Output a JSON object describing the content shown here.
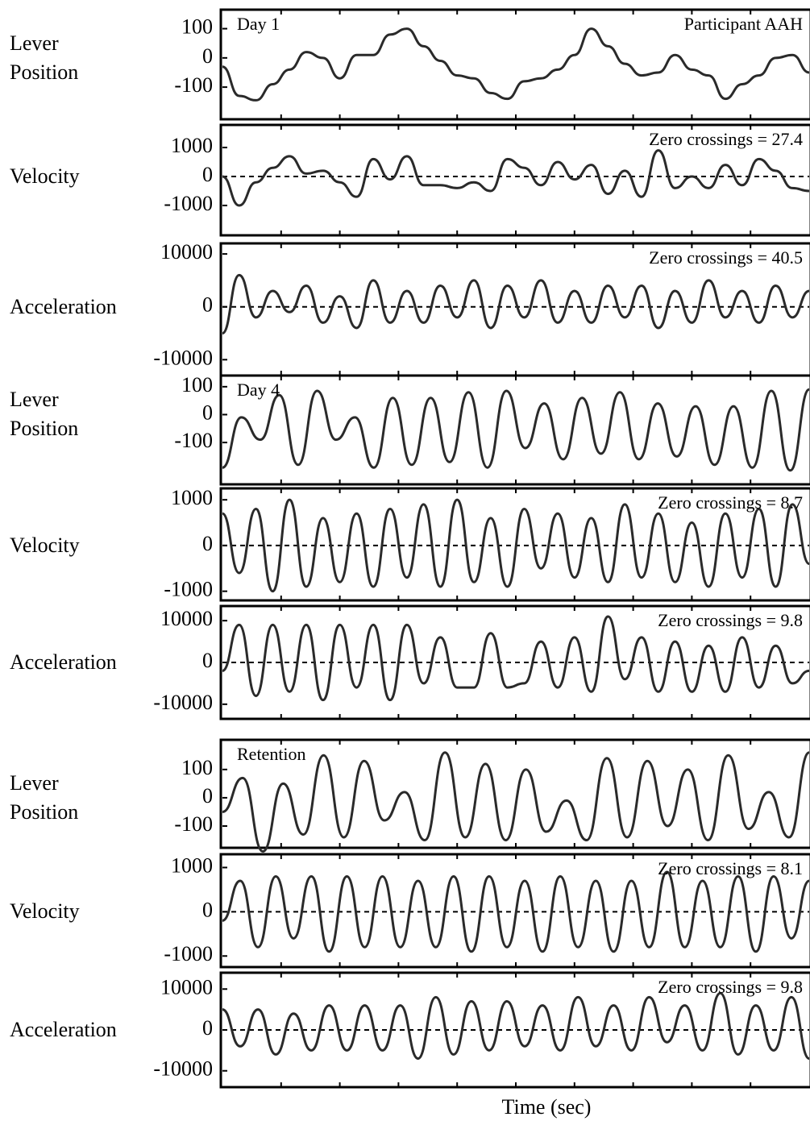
{
  "chart_data": [
    {
      "type": "line",
      "ylabel": "Lever Position",
      "ylim": [
        -210,
        165
      ],
      "yticks": [
        -100,
        0,
        100
      ],
      "zero_line": false,
      "annotations": [
        {
          "text": "Day 1",
          "position": "top-left"
        },
        {
          "text": "Participant AAH",
          "position": "top-right"
        }
      ],
      "values": [
        -30,
        -130,
        -145,
        -90,
        -40,
        20,
        0,
        -70,
        10,
        10,
        80,
        100,
        40,
        -10,
        -60,
        -70,
        -120,
        -140,
        -80,
        -70,
        -40,
        10,
        100,
        40,
        -20,
        -60,
        -50,
        10,
        -40,
        -60,
        -140,
        -90,
        -60,
        0,
        10,
        -50
      ]
    },
    {
      "type": "line",
      "ylabel": "Velocity",
      "ylim": [
        -2030,
        1780
      ],
      "yticks": [
        -1000,
        0,
        1000
      ],
      "zero_line": true,
      "annotations": [
        {
          "text": "Zero crossings = 27.4",
          "position": "top-right"
        }
      ],
      "values": [
        0,
        -1000,
        -200,
        300,
        700,
        100,
        200,
        -200,
        -700,
        600,
        -100,
        700,
        -300,
        -300,
        -400,
        -200,
        -500,
        600,
        300,
        -300,
        500,
        -100,
        400,
        -600,
        200,
        -700,
        900,
        -400,
        0,
        -400,
        400,
        -300,
        600,
        200,
        -400,
        -500
      ]
    },
    {
      "type": "line",
      "ylabel": "Acceleration",
      "ylim": [
        -13000,
        12000
      ],
      "yticks": [
        -10000,
        0,
        10000
      ],
      "zero_line": true,
      "annotations": [
        {
          "text": "Zero crossings = 40.5",
          "position": "top-right"
        }
      ],
      "values": [
        -5000,
        6000,
        -2000,
        3000,
        -1000,
        4000,
        -3000,
        2000,
        -4000,
        5000,
        -3000,
        3000,
        -3000,
        4000,
        -2000,
        5000,
        -4000,
        4000,
        -2000,
        5000,
        -3000,
        3000,
        -3000,
        4000,
        -2000,
        4000,
        -4000,
        3000,
        -3000,
        5000,
        -2000,
        3000,
        -3000,
        4000,
        -2000,
        3000
      ]
    },
    {
      "type": "line",
      "ylabel": "Lever Position",
      "ylim": [
        -250,
        140
      ],
      "yticks": [
        -100,
        0,
        100
      ],
      "zero_line": false,
      "annotations": [
        {
          "text": "Day 4",
          "position": "top-left"
        }
      ],
      "values": [
        -190,
        -10,
        -90,
        70,
        -180,
        85,
        -90,
        -10,
        -190,
        60,
        -180,
        60,
        -170,
        80,
        -190,
        85,
        -120,
        40,
        -160,
        60,
        -140,
        80,
        -160,
        40,
        -150,
        30,
        -180,
        30,
        -190,
        85,
        -200,
        90
      ]
    },
    {
      "type": "line",
      "ylabel": "Velocity",
      "ylim": [
        -1200,
        1250
      ],
      "yticks": [
        -1000,
        0,
        1000
      ],
      "zero_line": true,
      "annotations": [
        {
          "text": "Zero crossings = 8.7",
          "position": "top-right"
        }
      ],
      "values": [
        700,
        -600,
        800,
        -1000,
        1000,
        -900,
        600,
        -800,
        700,
        -900,
        800,
        -700,
        900,
        -900,
        1000,
        -800,
        600,
        -900,
        800,
        -500,
        700,
        -700,
        600,
        -800,
        900,
        -700,
        700,
        -800,
        500,
        -900,
        700,
        -700,
        800,
        -900,
        900,
        -400
      ]
    },
    {
      "type": "line",
      "ylabel": "Acceleration",
      "ylim": [
        -13500,
        13500
      ],
      "yticks": [
        -10000,
        0,
        10000
      ],
      "zero_line": true,
      "annotations": [
        {
          "text": "Zero crossings = 9.8",
          "position": "top-right"
        }
      ],
      "values": [
        -2000,
        9000,
        -8000,
        9000,
        -7000,
        9000,
        -9000,
        9000,
        -6000,
        9000,
        -9000,
        9000,
        -5000,
        6000,
        -6000,
        -6000,
        7000,
        -6000,
        -5000,
        5000,
        -6000,
        6000,
        -7000,
        11000,
        -4000,
        6000,
        -7000,
        5000,
        -7000,
        4000,
        -7000,
        6000,
        -6000,
        4000,
        -5000,
        -2000
      ]
    },
    {
      "type": "line",
      "ylabel": "Lever Position",
      "ylim": [
        -177,
        205
      ],
      "yticks": [
        -100,
        0,
        100
      ],
      "zero_line": false,
      "annotations": [
        {
          "text": "Retention",
          "position": "top-left"
        }
      ],
      "values": [
        -50,
        70,
        -190,
        50,
        -130,
        150,
        -140,
        130,
        -80,
        20,
        -150,
        160,
        -140,
        120,
        -150,
        100,
        -120,
        -10,
        -150,
        140,
        -140,
        130,
        -100,
        100,
        -150,
        150,
        -110,
        20,
        -140,
        160
      ]
    },
    {
      "type": "line",
      "ylabel": "Velocity",
      "ylim": [
        -1250,
        1300
      ],
      "yticks": [
        -1000,
        0,
        1000
      ],
      "zero_line": true,
      "annotations": [
        {
          "text": "Zero crossings = 8.1",
          "position": "top-right"
        }
      ],
      "values": [
        -200,
        700,
        -800,
        800,
        -600,
        800,
        -900,
        800,
        -800,
        800,
        -800,
        700,
        -800,
        800,
        -900,
        800,
        -800,
        700,
        -900,
        800,
        -800,
        700,
        -900,
        700,
        -800,
        900,
        -800,
        700,
        -800,
        800,
        -900,
        800,
        -600,
        700
      ]
    },
    {
      "type": "line",
      "ylabel": "Acceleration",
      "ylim": [
        -14000,
        14000
      ],
      "yticks": [
        -10000,
        0,
        10000
      ],
      "zero_line": true,
      "annotations": [
        {
          "text": "Zero crossings = 9.8",
          "position": "top-right"
        }
      ],
      "values": [
        5000,
        -4000,
        5000,
        -6000,
        4000,
        -5000,
        6000,
        -5000,
        6000,
        -5000,
        6000,
        -7000,
        8000,
        -6000,
        7000,
        -5000,
        7000,
        -4000,
        6000,
        -5000,
        8000,
        -4000,
        6000,
        -5000,
        8000,
        -3000,
        6000,
        -5000,
        9000,
        -6000,
        6000,
        -5000,
        8000,
        -7000
      ]
    }
  ],
  "xlabel": "Time (sec)"
}
